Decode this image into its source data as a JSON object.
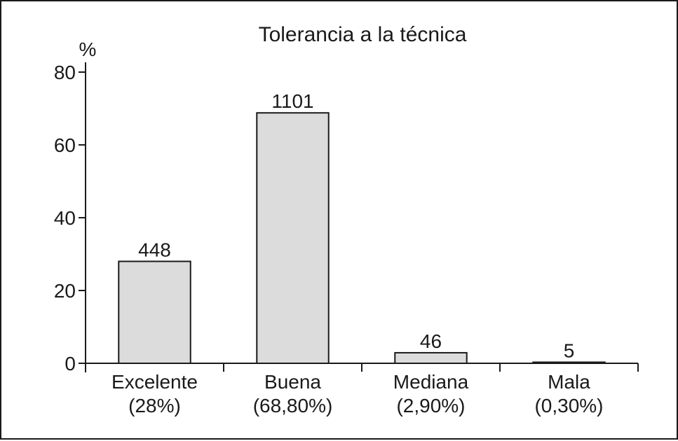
{
  "chart_data": {
    "type": "bar",
    "title": "Tolerancia a la técnica",
    "ylabel": "%",
    "xlabel": "",
    "ylim": [
      0,
      80
    ],
    "yticks": [
      0,
      20,
      40,
      60,
      80
    ],
    "grid": false,
    "categories": [
      "Excelente",
      "Buena",
      "Mediana",
      "Mala"
    ],
    "category_percent_labels": [
      "(28%)",
      "(68,80%)",
      "(2,90%)",
      "(0,30%)"
    ],
    "values": [
      28,
      68.8,
      2.9,
      0.3
    ],
    "data_labels": [
      "448",
      "1101",
      "46",
      "5"
    ],
    "colors": {
      "bar_fill": "#dcdcdc",
      "stroke": "#1a1a1a"
    }
  }
}
